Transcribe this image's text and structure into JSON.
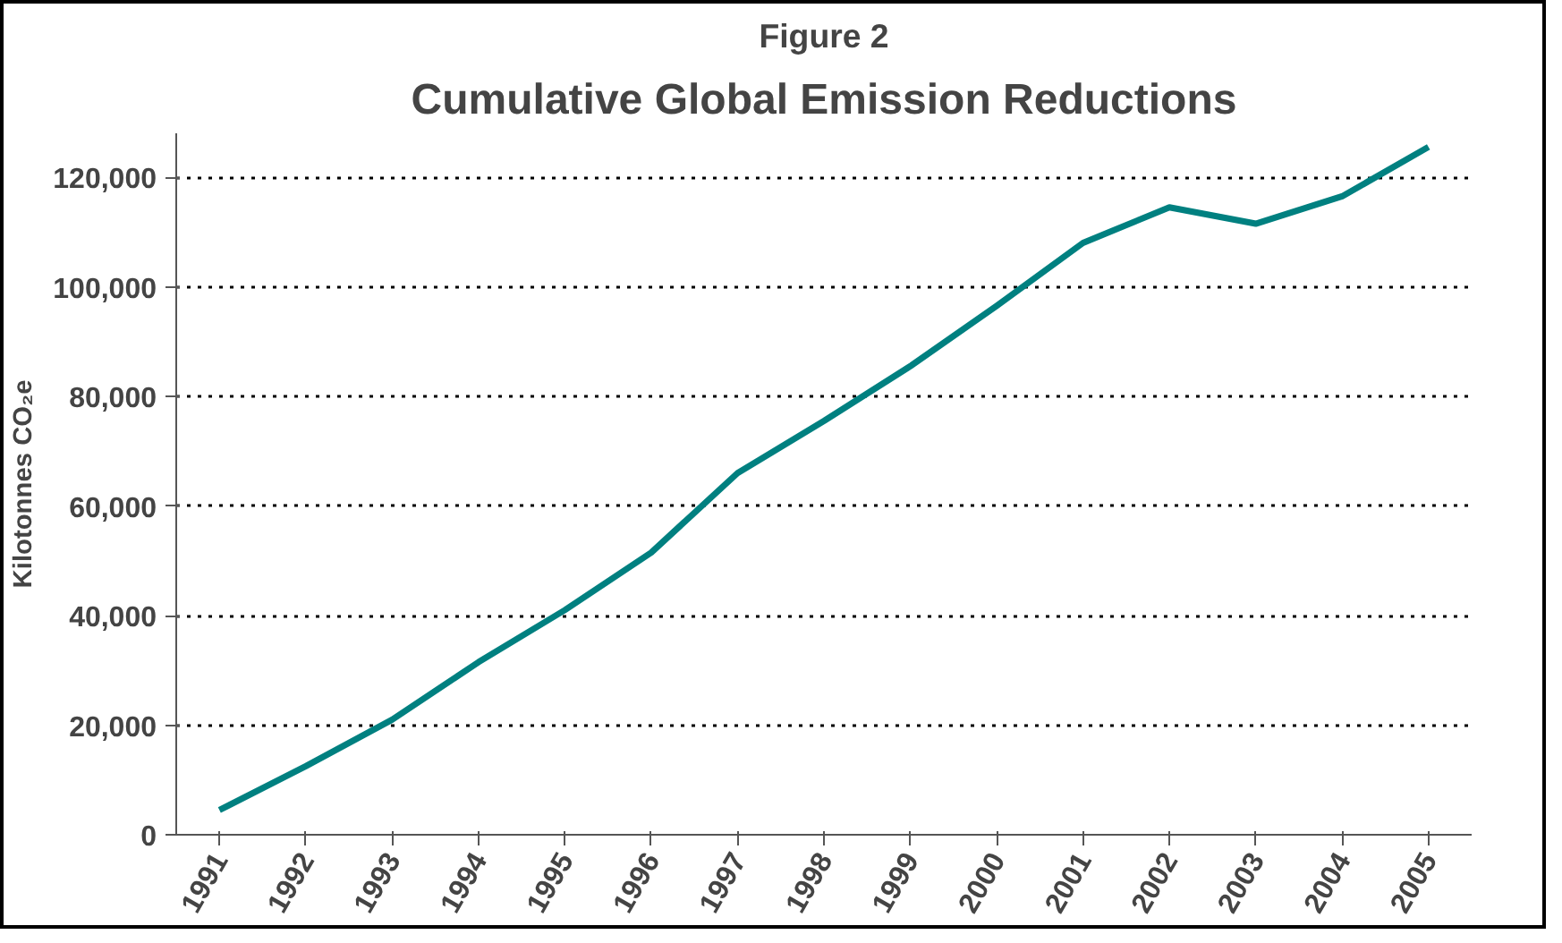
{
  "chart_data": {
    "type": "line",
    "title": "Figure 2",
    "subtitle": "Cumulative Global Emission Reductions",
    "ylabel": "Kilotonnes CO₂e",
    "categories": [
      "1991",
      "1992",
      "1993",
      "1994",
      "1995",
      "1996",
      "1997",
      "1998",
      "1999",
      "2000",
      "2001",
      "2002",
      "2003",
      "2004",
      "2005"
    ],
    "series": [
      {
        "color": "#008080",
        "values": [
          4500,
          12500,
          21000,
          31500,
          41000,
          51500,
          66000,
          75500,
          85500,
          96500,
          108000,
          114500,
          111500,
          116500,
          125500
        ]
      }
    ],
    "ylim": [
      0,
      128000
    ],
    "yticks": [
      {
        "value": 0,
        "label": "0"
      },
      {
        "value": 20000,
        "label": "20,000"
      },
      {
        "value": 40000,
        "label": "40,000"
      },
      {
        "value": 60000,
        "label": "60,000"
      },
      {
        "value": 80000,
        "label": "80,000"
      },
      {
        "value": 100000,
        "label": "100,000"
      },
      {
        "value": 120000,
        "label": "120,000"
      }
    ],
    "grid": "y",
    "marker": "none",
    "line_style": "solid"
  }
}
